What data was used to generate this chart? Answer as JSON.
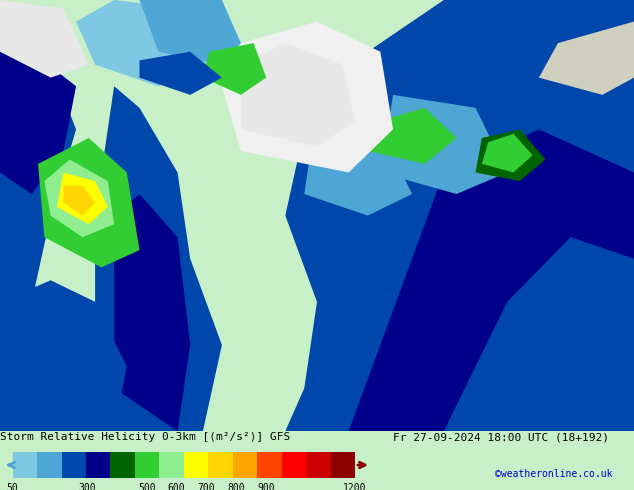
{
  "title_left": "Storm Relative Helicity 0-3km [⟨m²/s²⟩] GFS",
  "title_right": "Fr 27-09-2024 18:00 UTC (18+192)",
  "copyright": "©weatheronline.co.uk",
  "colorbar_values": [
    50,
    300,
    500,
    600,
    700,
    800,
    900,
    1200
  ],
  "colorbar_colors": [
    "#7ec8e3",
    "#0047ab",
    "#00008b",
    "#006400",
    "#32cd32",
    "#ffff00",
    "#ffa500",
    "#ff4500",
    "#8b0000"
  ],
  "colorbar_positions": [
    50,
    300,
    500,
    600,
    700,
    800,
    900,
    1200
  ],
  "bg_color": "#c8f0c8",
  "map_bg": "#c8f0c8",
  "title_fontsize": 9,
  "label_fontsize": 8,
  "copyright_color": "#0000cd",
  "text_color": "#000000",
  "fig_width": 6.34,
  "fig_height": 4.9,
  "dpi": 100
}
